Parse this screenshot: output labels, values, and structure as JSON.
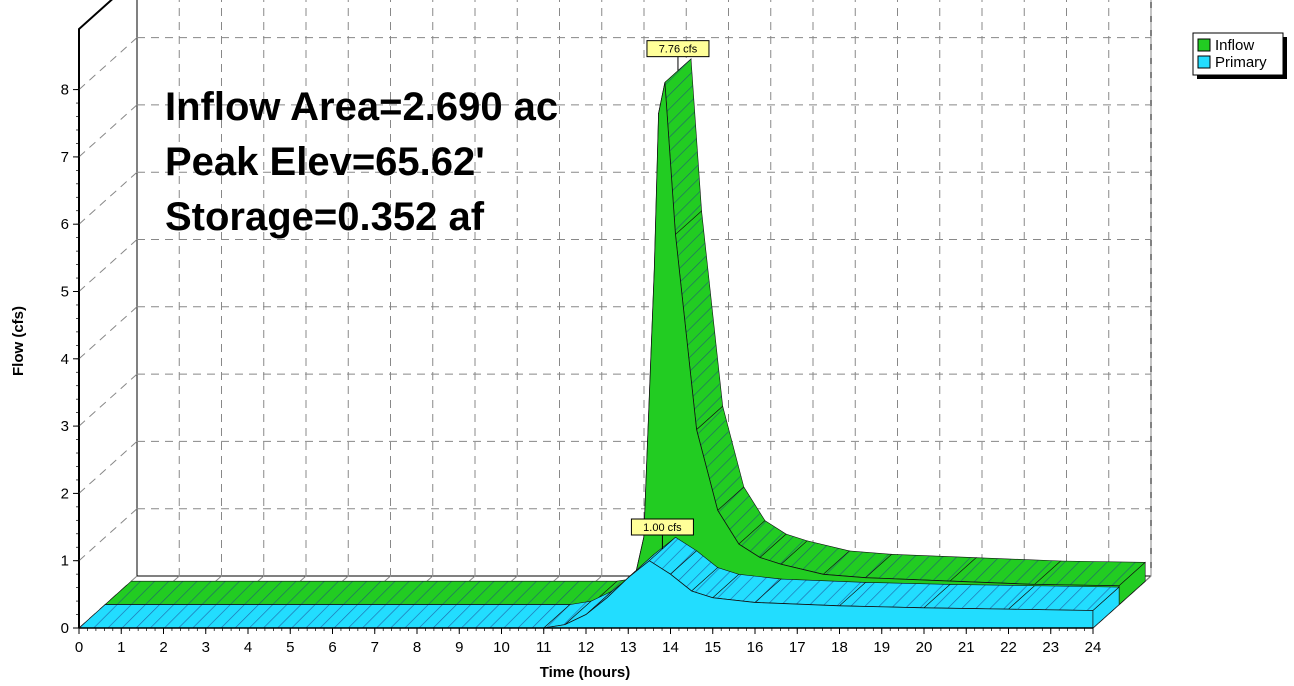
{
  "chart_data": {
    "type": "area",
    "title": "",
    "xlabel": "Time  (hours)",
    "ylabel": "Flow  (cfs)",
    "xlim": [
      0,
      24
    ],
    "ylim": [
      0,
      8
    ],
    "x_ticks": [
      0,
      1,
      2,
      3,
      4,
      5,
      6,
      7,
      8,
      9,
      10,
      11,
      12,
      13,
      14,
      15,
      16,
      17,
      18,
      19,
      20,
      21,
      22,
      23,
      24
    ],
    "y_ticks": [
      0,
      1,
      2,
      3,
      4,
      5,
      6,
      7,
      8
    ],
    "grid": true,
    "depth_3d": true,
    "legend_position": "top-right",
    "annotations": [
      "Inflow Area=2.690 ac",
      "Peak Elev=65.62'",
      "Storage=0.352 af"
    ],
    "series": [
      {
        "name": "Inflow",
        "color": "#22cc22",
        "peak_label": "7.76 cfs",
        "x": [
          0,
          11.5,
          12.0,
          12.5,
          12.75,
          13.0,
          13.1,
          13.25,
          13.5,
          14.0,
          14.5,
          15.0,
          15.5,
          16.0,
          17.0,
          18.0,
          20.0,
          22.0,
          24.0
        ],
        "values": [
          0.0,
          0.0,
          0.05,
          0.3,
          1.0,
          5.0,
          7.3,
          7.76,
          5.5,
          2.6,
          1.4,
          0.9,
          0.7,
          0.6,
          0.45,
          0.4,
          0.35,
          0.3,
          0.28
        ]
      },
      {
        "name": "Primary",
        "color": "#22ddff",
        "peak_label": "1.00 cfs",
        "x": [
          0,
          11.0,
          11.5,
          12.0,
          12.5,
          13.0,
          13.5,
          14.0,
          14.5,
          15.0,
          16.0,
          18.0,
          20.0,
          22.0,
          24.0
        ],
        "values": [
          0.0,
          0.0,
          0.05,
          0.2,
          0.45,
          0.75,
          1.0,
          0.8,
          0.55,
          0.45,
          0.38,
          0.33,
          0.3,
          0.28,
          0.26
        ]
      }
    ]
  }
}
